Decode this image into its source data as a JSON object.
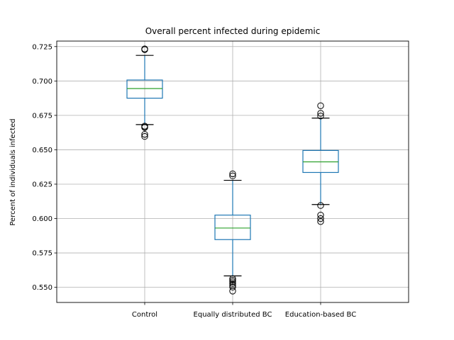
{
  "chart_data": {
    "type": "box",
    "title": "Overall percent infected during epidemic",
    "xlabel": "",
    "ylabel": "Percent of individuals infected",
    "categories": [
      "Control",
      "Equally distributed BC",
      "Education-based BC"
    ],
    "ylim": [
      0.539,
      0.729
    ],
    "yticks": [
      0.55,
      0.575,
      0.6,
      0.625,
      0.65,
      0.675,
      0.7,
      0.725
    ],
    "ytick_labels": [
      "0.550",
      "0.575",
      "0.600",
      "0.625",
      "0.650",
      "0.675",
      "0.700",
      "0.725"
    ],
    "grid": true,
    "colors": {
      "box": "#1f77b4",
      "median": "#2ca02c",
      "whisker_cap": "#000000",
      "grid": "#b0b0b0",
      "flier": "#000000"
    },
    "boxes": [
      {
        "category": "Control",
        "q1": 0.6875,
        "median": 0.6945,
        "q3": 0.7007,
        "whisker_low": 0.6683,
        "whisker_high": 0.7186,
        "fliers": [
          0.7233,
          0.7228,
          0.6672,
          0.6665,
          0.6662,
          0.6612,
          0.6597
        ]
      },
      {
        "category": "Equally distributed BC",
        "q1": 0.5847,
        "median": 0.5931,
        "q3": 0.6025,
        "whisker_low": 0.5583,
        "whisker_high": 0.6278,
        "fliers": [
          0.6325,
          0.631,
          0.5563,
          0.5552,
          0.554,
          0.5528,
          0.5515,
          0.5502,
          0.5473
        ]
      },
      {
        "category": "Education-based BC",
        "q1": 0.6335,
        "median": 0.6412,
        "q3": 0.6495,
        "whisker_low": 0.6102,
        "whisker_high": 0.673,
        "fliers": [
          0.682,
          0.6765,
          0.6745,
          0.6095,
          0.6025,
          0.6,
          0.5978
        ]
      }
    ]
  }
}
